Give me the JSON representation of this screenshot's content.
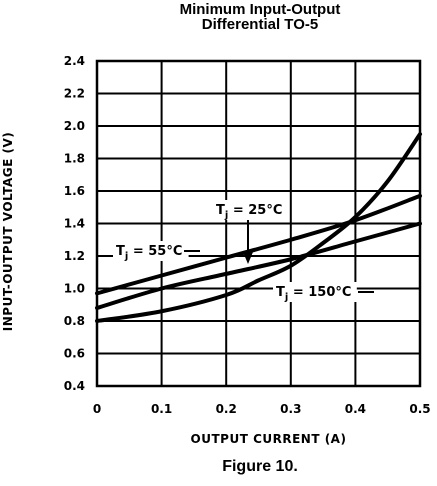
{
  "title_line1": "Minimum Input-Output",
  "title_line2": "Differential TO-5",
  "caption": "Figure 10.",
  "chart_data": {
    "type": "line",
    "xlabel": "OUTPUT CURRENT (A)",
    "ylabel": "INPUT-OUTPUT VOLTAGE (V)",
    "xlim": [
      0,
      0.5
    ],
    "ylim": [
      0.4,
      2.4
    ],
    "x_ticks": [
      "0",
      "0.1",
      "0.2",
      "0.3",
      "0.4",
      "0.5"
    ],
    "y_ticks": [
      "0.4",
      "0.6",
      "0.8",
      "1.0",
      "1.2",
      "1.4",
      "1.6",
      "1.8",
      "2.0",
      "2.2",
      "2.4"
    ],
    "grid": true,
    "series": [
      {
        "name": "Tj = 55°C",
        "label_main": "T",
        "label_sub": "j",
        "label_rest": " = 55°C",
        "x": [
          0,
          0.1,
          0.2,
          0.3,
          0.4,
          0.5
        ],
        "y": [
          0.97,
          1.08,
          1.19,
          1.3,
          1.42,
          1.57
        ]
      },
      {
        "name": "Tj = 25°C",
        "label_main": "T",
        "label_sub": "j",
        "label_rest": " = 25°C",
        "x": [
          0,
          0.1,
          0.2,
          0.3,
          0.4,
          0.5
        ],
        "y": [
          0.88,
          1.0,
          1.09,
          1.18,
          1.29,
          1.4
        ]
      },
      {
        "name": "Tj = 150°C",
        "label_main": "T",
        "label_sub": "j",
        "label_rest": " = 150°C",
        "x": [
          0,
          0.1,
          0.2,
          0.25,
          0.3,
          0.35,
          0.4,
          0.45,
          0.5
        ],
        "y": [
          0.8,
          0.86,
          0.96,
          1.05,
          1.14,
          1.28,
          1.44,
          1.66,
          1.95
        ]
      }
    ]
  }
}
